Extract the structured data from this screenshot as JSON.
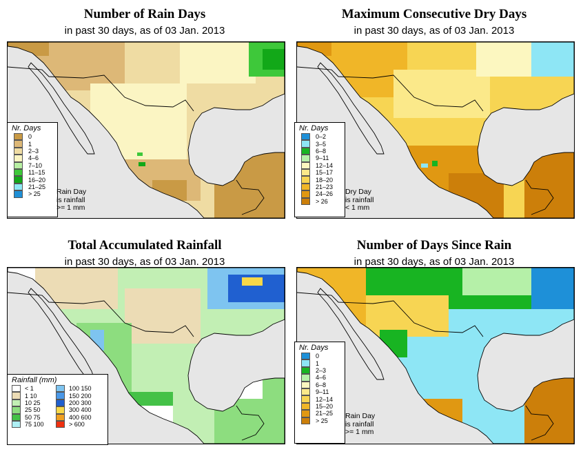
{
  "panels": {
    "rain_days": {
      "title": "Number of Rain Days",
      "subtitle": "in past 30 days, as of  03 Jan. 2013",
      "legend_title": "Nr. Days",
      "legend": [
        {
          "label": "0",
          "color": "#c99a45"
        },
        {
          "label": "1",
          "color": "#ddb877"
        },
        {
          "label": "2–3",
          "color": "#efdca3"
        },
        {
          "label": "4–6",
          "color": "#fbf5c3"
        },
        {
          "label": "7–10",
          "color": "#b8f0a3"
        },
        {
          "label": "11–15",
          "color": "#3ec83a"
        },
        {
          "label": "16–20",
          "color": "#12a818"
        },
        {
          "label": "21–25",
          "color": "#8ee8f4"
        },
        {
          "label": "> 25",
          "color": "#1f8fd6"
        }
      ],
      "note": [
        "Rain Day",
        "is rainfall",
        ">= 1 mm"
      ]
    },
    "dry_days": {
      "title": "Maximum Consecutive Dry Days",
      "subtitle": "in past 30 days, as of  03 Jan. 2013",
      "legend_title": "Nr. Days",
      "legend": [
        {
          "label": "0–2",
          "color": "#1e90d8"
        },
        {
          "label": "3–5",
          "color": "#8ee6f5"
        },
        {
          "label": "6–8",
          "color": "#18b422"
        },
        {
          "label": "9–11",
          "color": "#b5f0a8"
        },
        {
          "label": "12–14",
          "color": "#fcf7c0"
        },
        {
          "label": "15–17",
          "color": "#fbe98a"
        },
        {
          "label": "18–20",
          "color": "#f7d553"
        },
        {
          "label": "21–23",
          "color": "#f0b628"
        },
        {
          "label": "24–26",
          "color": "#e09812"
        },
        {
          "label": "> 26",
          "color": "#cc7f0a"
        }
      ],
      "note": [
        "Dry Day",
        "is rainfall",
        "< 1 mm"
      ]
    },
    "total_rain": {
      "title": "Total Accumulated Rainfall",
      "subtitle": "in past 30 days, as of  03 Jan. 2013",
      "legend_title": "Rainfall (mm)",
      "legend_left": [
        {
          "label": "< 1",
          "color": "#ffffff"
        },
        {
          "label": "1   10",
          "color": "#ecdcb5"
        },
        {
          "label": "10   25",
          "color": "#c2efb4"
        },
        {
          "label": "25   50",
          "color": "#8ddd7f"
        },
        {
          "label": "50   75",
          "color": "#44c147"
        },
        {
          "label": "75  100",
          "color": "#aef0f5"
        }
      ],
      "legend_right": [
        {
          "label": "100  150",
          "color": "#7ec4f0"
        },
        {
          "label": "150  200",
          "color": "#4a98e8"
        },
        {
          "label": "200  300",
          "color": "#2060d0"
        },
        {
          "label": "300  400",
          "color": "#f8d848"
        },
        {
          "label": "400  600",
          "color": "#f0a020"
        },
        {
          "label": "> 600",
          "color": "#f03010"
        }
      ]
    },
    "since_rain": {
      "title": "Number of Days Since Rain",
      "subtitle": "in past 30 days, as of  03 Jan. 2013",
      "legend_title": "Nr. Days",
      "legend": [
        {
          "label": "0",
          "color": "#1e90d8"
        },
        {
          "label": "1",
          "color": "#8ee6f5"
        },
        {
          "label": "2–3",
          "color": "#18b422"
        },
        {
          "label": "4–6",
          "color": "#b5f0a8"
        },
        {
          "label": "6–8",
          "color": "#fcf7c0"
        },
        {
          "label": "9–11",
          "color": "#fbe98a"
        },
        {
          "label": "12–14",
          "color": "#f7d553"
        },
        {
          "label": "15–20",
          "color": "#f0b628"
        },
        {
          "label": "21–25",
          "color": "#e09812"
        },
        {
          "label": "> 25",
          "color": "#cc7f0a"
        }
      ],
      "note": [
        "Rain Day",
        "is rainfall",
        ">= 1 mm"
      ]
    }
  },
  "map_colors": {
    "ocean": "#e6e6e6",
    "border": "#000000"
  }
}
